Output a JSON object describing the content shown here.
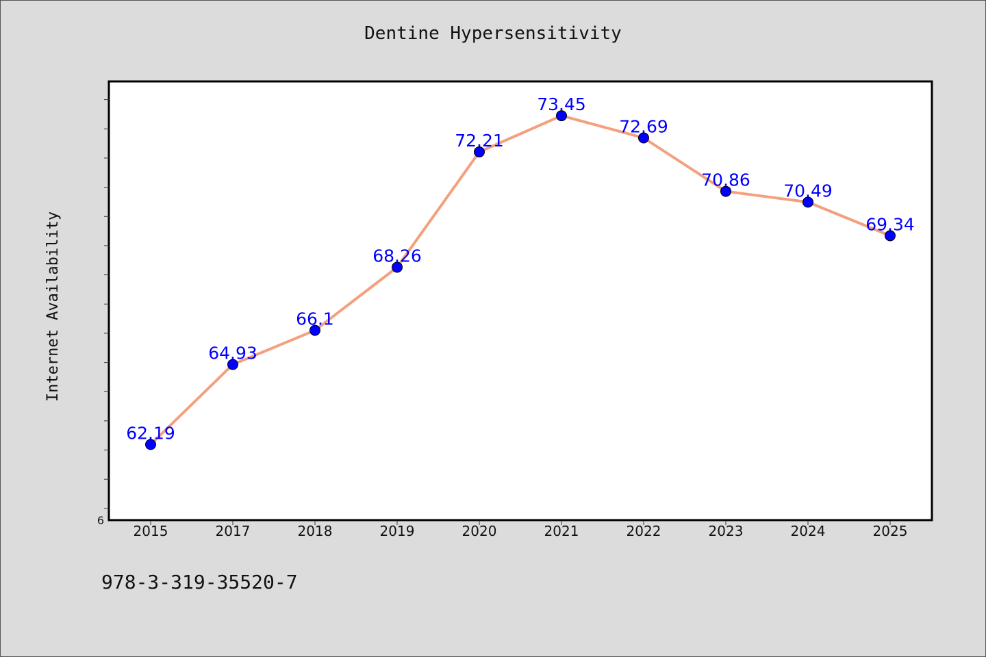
{
  "chart_data": {
    "type": "line",
    "title": "Dentine Hypersensitivity",
    "xlabel": "",
    "ylabel": "Internet Availability",
    "categories": [
      "2015",
      "2017",
      "2018",
      "2019",
      "2020",
      "2021",
      "2022",
      "2023",
      "2024",
      "2025"
    ],
    "series": [
      {
        "values": [
          62.19,
          64.93,
          66.1,
          68.26,
          72.21,
          73.45,
          72.69,
          70.86,
          70.49,
          69.34
        ],
        "labels": [
          "62.19",
          "64.93",
          "66.1",
          "68.26",
          "72.21",
          "73.45",
          "72.69",
          "70.86",
          "70.49",
          "69.34"
        ]
      }
    ],
    "ylim": [
      59.6,
      74.6
    ],
    "y_tick_step": 1,
    "y_tick_label": "6",
    "grid": false,
    "line_color": "#f4a07e",
    "marker_color": "#0000ff",
    "label_color": "#0000ff"
  },
  "footer": {
    "isbn": "978-3-319-35520-7"
  }
}
